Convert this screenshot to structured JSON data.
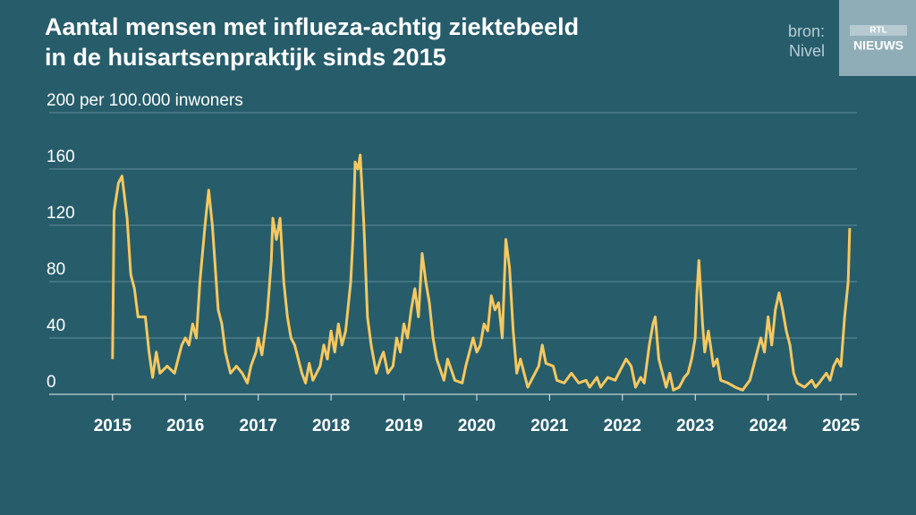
{
  "chart_data": {
    "type": "line",
    "title": [
      "Aantal mensen met influeza-achtig ziektebeeld",
      "in de huisartsenpraktijk sinds 2015"
    ],
    "source": [
      "bron:",
      "Nivel"
    ],
    "logo": [
      "RTL",
      "NIEUWS"
    ],
    "xlim": [
      2014.13,
      2025.22
    ],
    "xticks": [
      2015,
      2016,
      2017,
      2018,
      2019,
      2020,
      2021,
      2022,
      2023,
      2024,
      2025
    ],
    "ylim": [
      0,
      200
    ],
    "yticks": [
      0,
      40,
      80,
      120,
      160,
      {
        "value": 200,
        "label": "200 per 100.000 inwoners"
      }
    ],
    "grid": true,
    "series": [
      {
        "color": "#f6c85f",
        "x": [
          2015.0,
          2015.02,
          2015.08,
          2015.13,
          2015.2,
          2015.25,
          2015.3,
          2015.35,
          2015.45,
          2015.5,
          2015.55,
          2015.6,
          2015.65,
          2015.75,
          2015.85,
          2015.9,
          2015.95,
          2016.0,
          2016.05,
          2016.1,
          2016.15,
          2016.2,
          2016.27,
          2016.32,
          2016.37,
          2016.45,
          2016.5,
          2016.55,
          2016.62,
          2016.7,
          2016.78,
          2016.85,
          2016.9,
          2016.97,
          2017.0,
          2017.05,
          2017.12,
          2017.18,
          2017.2,
          2017.25,
          2017.3,
          2017.35,
          2017.4,
          2017.45,
          2017.5,
          2017.6,
          2017.65,
          2017.7,
          2017.75,
          2017.85,
          2017.9,
          2017.95,
          2018.0,
          2018.05,
          2018.1,
          2018.15,
          2018.2,
          2018.27,
          2018.3,
          2018.33,
          2018.37,
          2018.4,
          2018.45,
          2018.5,
          2018.55,
          2018.62,
          2018.68,
          2018.72,
          2018.78,
          2018.85,
          2018.9,
          2018.95,
          2019.0,
          2019.05,
          2019.1,
          2019.15,
          2019.2,
          2019.25,
          2019.3,
          2019.35,
          2019.4,
          2019.45,
          2019.55,
          2019.6,
          2019.7,
          2019.8,
          2019.85,
          2019.95,
          2020.0,
          2020.05,
          2020.1,
          2020.15,
          2020.2,
          2020.25,
          2020.3,
          2020.35,
          2020.4,
          2020.45,
          2020.5,
          2020.55,
          2020.6,
          2020.7,
          2020.75,
          2020.85,
          2020.9,
          2020.95,
          2021.05,
          2021.1,
          2021.2,
          2021.3,
          2021.4,
          2021.5,
          2021.55,
          2021.65,
          2021.7,
          2021.8,
          2021.9,
          2021.95,
          2022.0,
          2022.05,
          2022.12,
          2022.18,
          2022.25,
          2022.3,
          2022.37,
          2022.42,
          2022.45,
          2022.5,
          2022.55,
          2022.6,
          2022.65,
          2022.7,
          2022.78,
          2022.85,
          2022.9,
          2022.95,
          2023.0,
          2023.02,
          2023.05,
          2023.1,
          2023.13,
          2023.18,
          2023.25,
          2023.3,
          2023.35,
          2023.45,
          2023.55,
          2023.65,
          2023.75,
          2023.8,
          2023.85,
          2023.9,
          2023.95,
          2024.0,
          2024.05,
          2024.1,
          2024.15,
          2024.2,
          2024.25,
          2024.3,
          2024.35,
          2024.4,
          2024.5,
          2024.6,
          2024.65,
          2024.7,
          2024.8,
          2024.85,
          2024.9,
          2024.95,
          2025.0,
          2025.05,
          2025.1,
          2025.12
        ],
        "values": [
          25,
          130,
          150,
          155,
          125,
          85,
          75,
          55,
          55,
          30,
          12,
          30,
          15,
          20,
          15,
          25,
          35,
          40,
          35,
          50,
          40,
          80,
          120,
          145,
          120,
          60,
          50,
          30,
          15,
          20,
          15,
          8,
          20,
          30,
          40,
          28,
          55,
          95,
          125,
          110,
          125,
          80,
          55,
          40,
          35,
          15,
          8,
          22,
          10,
          20,
          35,
          25,
          45,
          30,
          50,
          35,
          45,
          80,
          110,
          165,
          160,
          170,
          120,
          55,
          35,
          15,
          25,
          30,
          15,
          20,
          40,
          30,
          50,
          40,
          60,
          75,
          55,
          100,
          80,
          65,
          40,
          25,
          10,
          25,
          10,
          8,
          20,
          40,
          30,
          35,
          50,
          45,
          70,
          60,
          65,
          40,
          110,
          90,
          45,
          15,
          25,
          5,
          10,
          20,
          35,
          22,
          20,
          10,
          8,
          15,
          8,
          10,
          5,
          12,
          5,
          12,
          10,
          15,
          20,
          25,
          20,
          5,
          12,
          8,
          35,
          50,
          55,
          25,
          15,
          5,
          15,
          3,
          5,
          12,
          15,
          25,
          40,
          70,
          95,
          50,
          30,
          45,
          20,
          25,
          10,
          8,
          5,
          3,
          10,
          20,
          30,
          40,
          30,
          55,
          35,
          60,
          72,
          60,
          45,
          35,
          15,
          8,
          5,
          10,
          5,
          8,
          15,
          10,
          20,
          25,
          20,
          55,
          80,
          118
        ]
      }
    ]
  }
}
